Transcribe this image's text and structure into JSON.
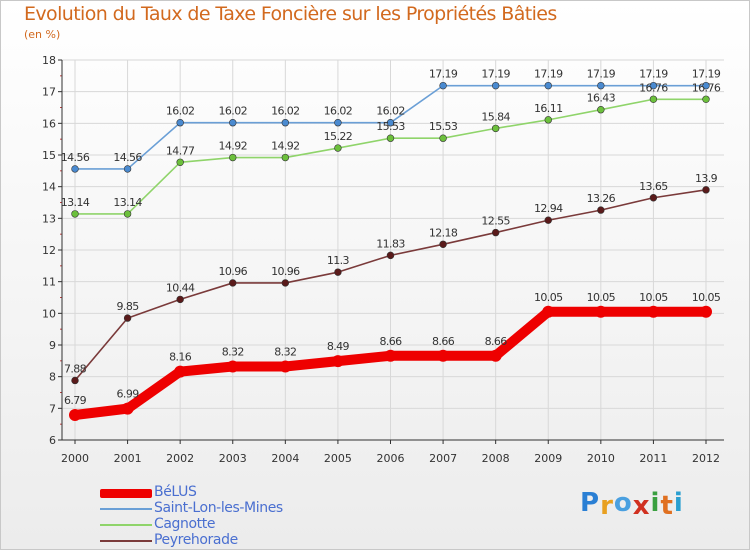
{
  "header": {
    "title": "Evolution du Taux de Taxe Foncière sur les Propriétés Bâties",
    "unit": "(en %)"
  },
  "colors": {
    "title": "#d2691e",
    "axis": "#303030",
    "grid": "#d8d8d8",
    "legend_text": "#4a6fd0"
  },
  "chart_data": {
    "type": "line",
    "title": "Evolution du Taux de Taxe Foncière sur les Propriétés Bâties",
    "ylabel": "(en %)",
    "xlabel": "",
    "ylim": [
      6,
      18
    ],
    "yticks": [
      6,
      7,
      8,
      9,
      10,
      11,
      12,
      13,
      14,
      15,
      16,
      17,
      18
    ],
    "grid": true,
    "categories": [
      "2000",
      "2001",
      "2002",
      "2003",
      "2004",
      "2005",
      "2006",
      "2007",
      "2008",
      "2009",
      "2010",
      "2011",
      "2012"
    ],
    "series": [
      {
        "name": "Saint-Lon-les-Mines",
        "color": "#6a9fd6",
        "marker": "#4a8ad0",
        "weight": "thin",
        "values": [
          14.56,
          14.56,
          16.02,
          16.02,
          16.02,
          16.02,
          16.02,
          17.19,
          17.19,
          17.19,
          17.19,
          17.19,
          17.19
        ],
        "labels": [
          "14.56",
          "14.56",
          "16.02",
          "16.02",
          "16.02",
          "16.02",
          "16.02",
          "17.19",
          "17.19",
          "17.19",
          "17.19",
          "17.19",
          "17.19"
        ]
      },
      {
        "name": "Cagnotte",
        "color": "#8fd46a",
        "marker": "#6cc03c",
        "weight": "thin",
        "values": [
          13.14,
          13.14,
          14.77,
          14.92,
          14.92,
          15.22,
          15.53,
          15.53,
          15.84,
          16.11,
          16.43,
          16.76,
          16.76
        ],
        "labels": [
          "13.14",
          "13.14",
          "14.77",
          "14.92",
          "14.92",
          "15.22",
          "15.53",
          "15.53",
          "15.84",
          "16.11",
          "16.43",
          "16.76",
          "16.76"
        ]
      },
      {
        "name": "Peyrehorade",
        "color": "#7a3a3a",
        "marker": "#5a1a1a",
        "weight": "thin",
        "values": [
          7.88,
          9.85,
          10.44,
          10.96,
          10.96,
          11.3,
          11.83,
          12.18,
          12.55,
          12.94,
          13.26,
          13.65,
          13.9
        ],
        "labels": [
          "7.88",
          "9.85",
          "10.44",
          "10.96",
          "10.96",
          "11.3",
          "11.83",
          "12.18",
          "12.55",
          "12.94",
          "13.26",
          "13.65",
          "13.9"
        ]
      },
      {
        "name": "BéLUS",
        "color": "#ee0000",
        "marker": "#ee0000",
        "weight": "thick",
        "values": [
          6.79,
          6.99,
          8.16,
          8.32,
          8.32,
          8.49,
          8.66,
          8.66,
          8.66,
          10.05,
          10.05,
          10.05,
          10.05
        ],
        "labels": [
          "6.79",
          "6.99",
          "8.16",
          "8.32",
          "8.32",
          "8.49",
          "8.66",
          "8.66",
          "8.66",
          "10.05",
          "10.05",
          "10.05",
          "10.05"
        ]
      }
    ]
  },
  "legend": {
    "items": [
      {
        "label": "BéLUS",
        "color": "#ee0000",
        "weight": "thick"
      },
      {
        "label": "Saint-Lon-les-Mines",
        "color": "#6a9fd6",
        "weight": "thin"
      },
      {
        "label": "Cagnotte",
        "color": "#8fd46a",
        "weight": "thin"
      },
      {
        "label": "Peyrehorade",
        "color": "#7a3a3a",
        "weight": "thin"
      }
    ]
  },
  "brand": {
    "letters": [
      "P",
      "r",
      "o",
      "x",
      "i",
      "t",
      "i"
    ],
    "colors": [
      "#2a7fd4",
      "#e8a020",
      "#4aa0e0",
      "#d03020",
      "#3aa040",
      "#e07020",
      "#2a9fd0"
    ]
  }
}
